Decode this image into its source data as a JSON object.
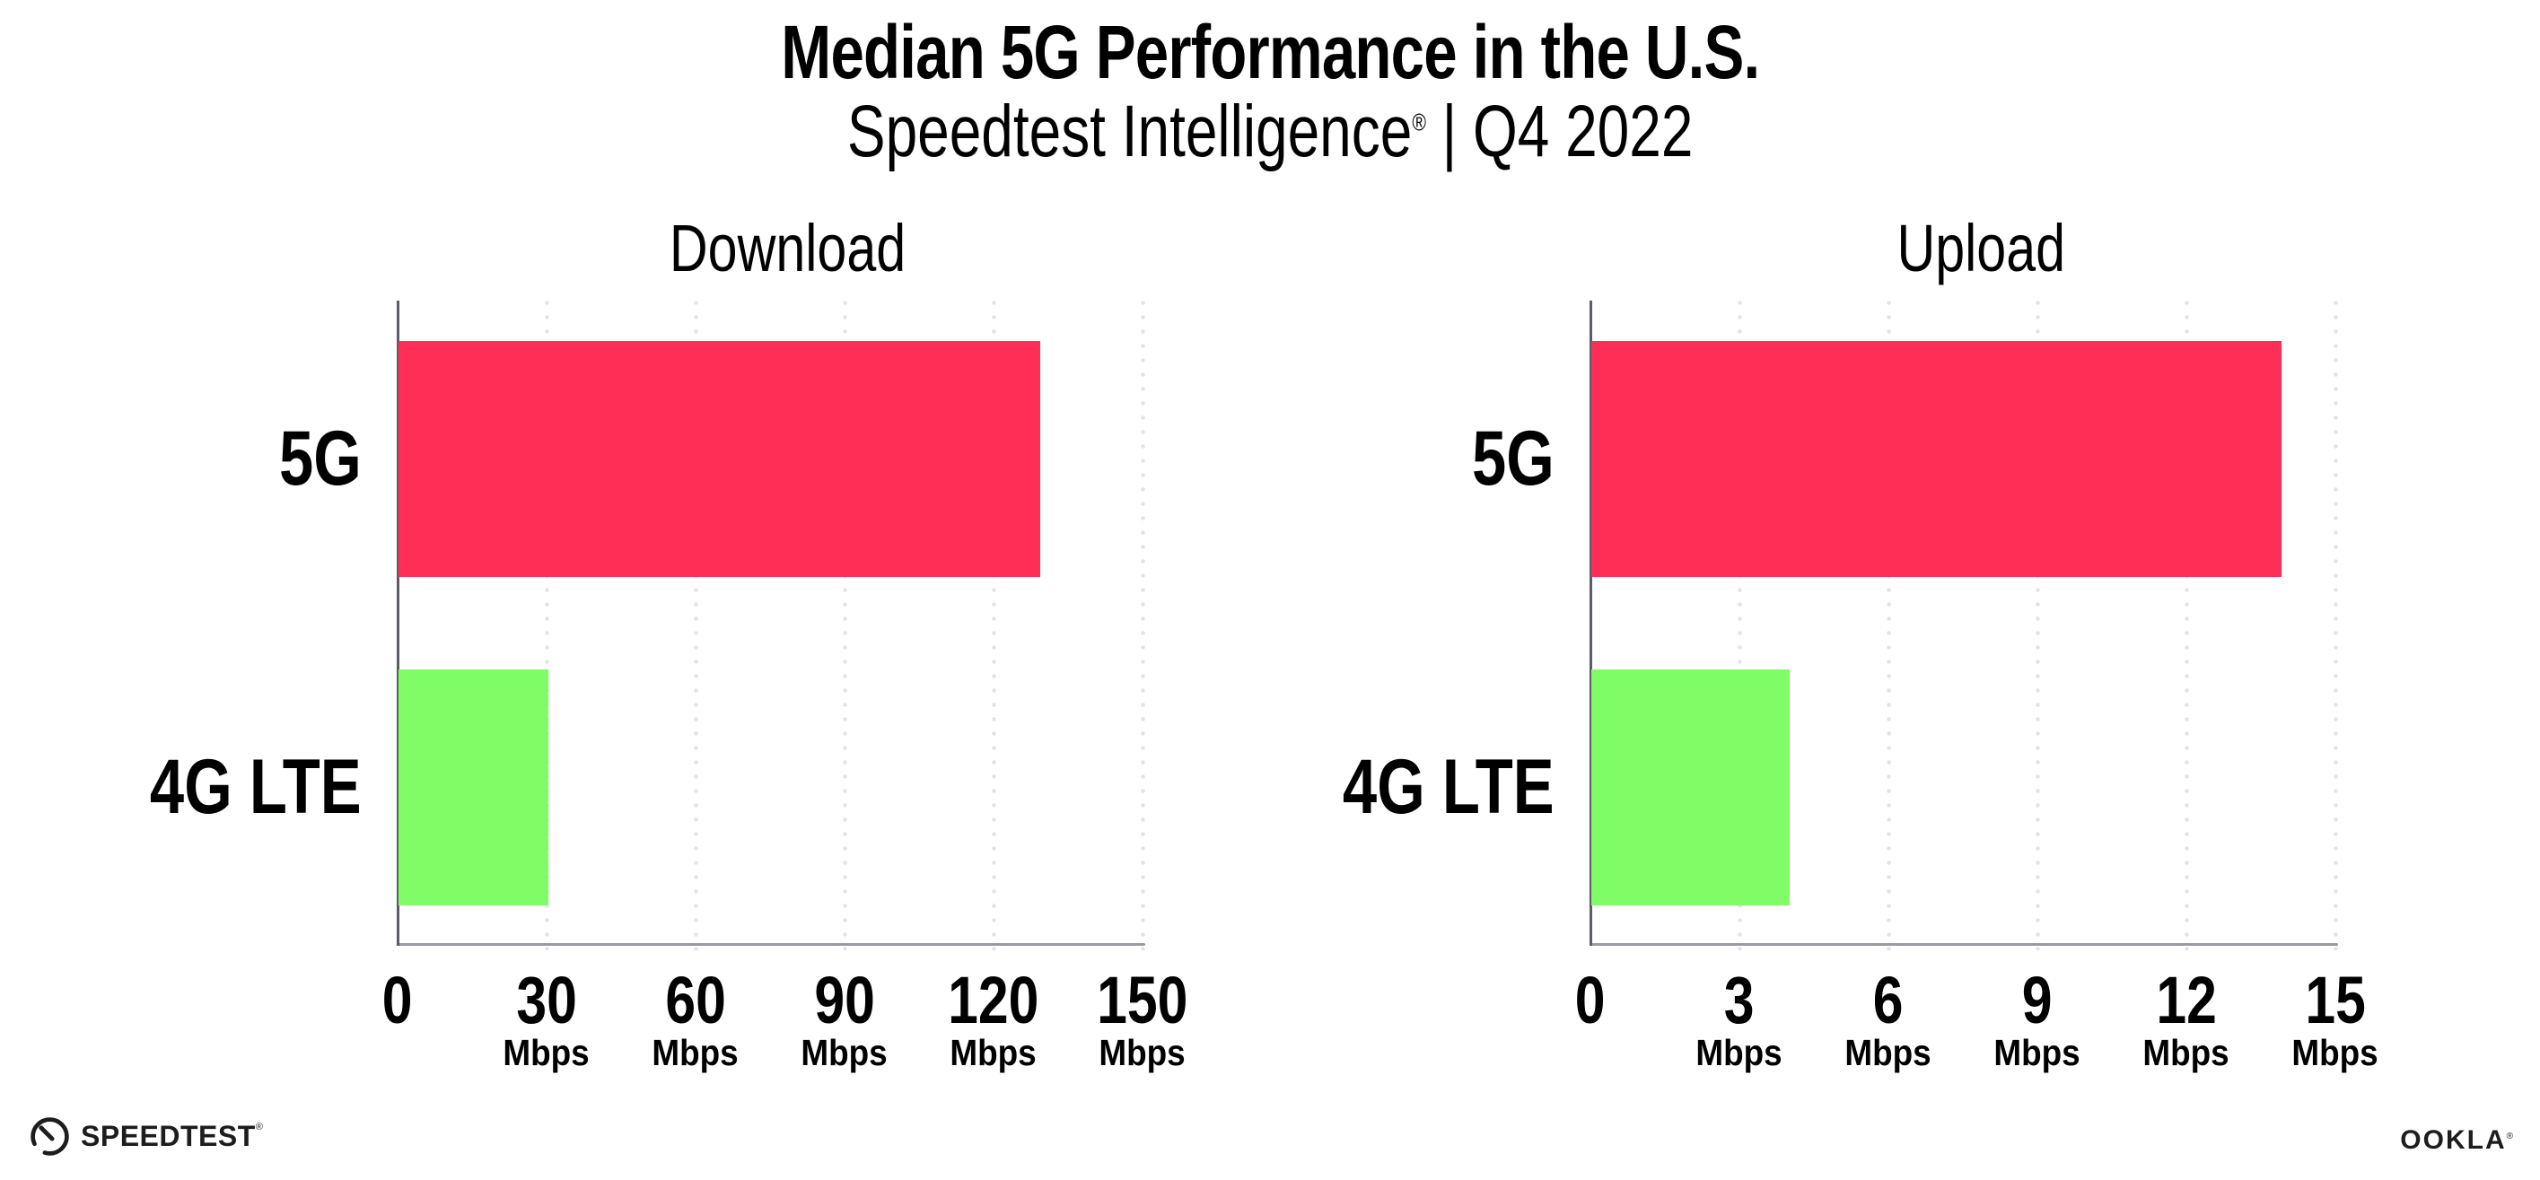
{
  "header": {
    "title": "Median 5G Performance in the U.S.",
    "subtitle_brand": "Speedtest Intelligence",
    "subtitle_mark": "®",
    "subtitle_rest": " | Q4 2022"
  },
  "chart_data": {
    "type": "bar",
    "orientation": "horizontal",
    "unit": "Mbps",
    "categories": [
      "5G",
      "4G LTE"
    ],
    "bar_colors": [
      "#FF2E56",
      "#80FC66"
    ],
    "grid": "vertical-dotted",
    "legend": "none",
    "charts": [
      {
        "title": "Download",
        "xlim": [
          0,
          150
        ],
        "ticks": [
          0,
          30,
          60,
          90,
          120,
          150
        ],
        "values": [
          129.2,
          30.2
        ]
      },
      {
        "title": "Upload",
        "xlim": [
          0,
          15
        ],
        "ticks": [
          0,
          3,
          6,
          9,
          12,
          15
        ],
        "values": [
          13.9,
          4.0
        ]
      }
    ]
  },
  "footer": {
    "speedtest": "SPEEDTEST",
    "speedtest_mark": "®",
    "ookla": "OOKLA",
    "ookla_mark": "®"
  }
}
